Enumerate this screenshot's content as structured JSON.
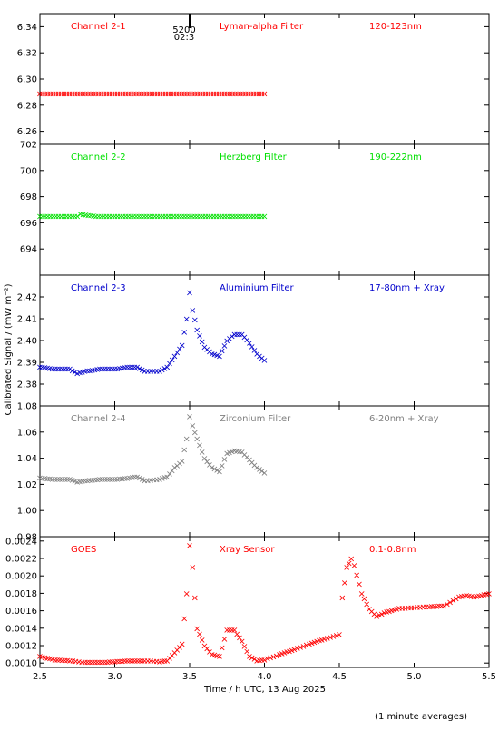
{
  "x_axis": {
    "title": "Time / h UTC, 13 Aug 2025",
    "ticks": [
      2.5,
      3.0,
      3.5,
      4.0,
      4.5,
      5.0,
      5.5
    ],
    "tick_labels": [
      "2.5",
      "3.0",
      "3.5",
      "4.0",
      "4.5",
      "5.0",
      "5.5"
    ],
    "range": [
      2.5,
      5.5
    ]
  },
  "y_axis_title": "Calibrated Signal / (mW m⁻²)",
  "footnote": "(1 minute averages)",
  "marker": {
    "x": 3.5,
    "label1": "5200",
    "label2": "02:3"
  },
  "chart_data": [
    {
      "type": "scatter",
      "channel": "Channel 2-1",
      "filter": "Lyman-alpha Filter",
      "band": "120-123nm",
      "color": "#ff0000",
      "ylim": [
        6.25,
        6.35
      ],
      "yticks": [
        6.26,
        6.28,
        6.3,
        6.32,
        6.34
      ],
      "ytick_labels": [
        "6.26",
        "6.28",
        "6.30",
        "6.32",
        "6.34"
      ],
      "series": [
        {
          "x": [
            2.5,
            2.625,
            2.75,
            2.875,
            3.0,
            3.125,
            3.25,
            3.375,
            3.5,
            3.625,
            3.75,
            3.875,
            4.0
          ],
          "y": [
            6.289,
            6.289,
            6.289,
            6.289,
            6.289,
            6.289,
            6.289,
            6.289,
            6.289,
            6.289,
            6.289,
            6.289,
            6.289
          ]
        }
      ]
    },
    {
      "type": "scatter",
      "channel": "Channel 2-2",
      "filter": "Herzberg Filter",
      "band": "190-222nm",
      "color": "#00e000",
      "ylim": [
        692,
        702
      ],
      "yticks": [
        694,
        696,
        698,
        700,
        702
      ],
      "ytick_labels": [
        "694",
        "696",
        "698",
        "700",
        "702"
      ],
      "series": [
        {
          "x": [
            2.5,
            2.625,
            2.75,
            2.77,
            2.875,
            3.0,
            3.125,
            3.25,
            3.375,
            3.5,
            3.625,
            3.75,
            3.875,
            4.0
          ],
          "y": [
            696.5,
            696.5,
            696.5,
            696.7,
            696.5,
            696.5,
            696.5,
            696.5,
            696.5,
            696.5,
            696.5,
            696.5,
            696.5,
            696.5
          ]
        }
      ]
    },
    {
      "type": "scatter",
      "channel": "Channel 2-3",
      "filter": "Aluminium Filter",
      "band": "17-80nm + Xray",
      "color": "#0000cc",
      "ylim": [
        2.37,
        2.43
      ],
      "yticks": [
        2.38,
        2.39,
        2.4,
        2.41,
        2.42
      ],
      "ytick_labels": [
        "2.38",
        "2.39",
        "2.40",
        "2.41",
        "2.42"
      ],
      "series": [
        {
          "x": [
            2.5,
            2.6,
            2.7,
            2.75,
            2.8,
            2.9,
            3.0,
            3.1,
            3.15,
            3.2,
            3.3,
            3.35,
            3.4,
            3.45,
            3.48,
            3.5,
            3.52,
            3.55,
            3.6,
            3.65,
            3.7,
            3.75,
            3.8,
            3.85,
            3.9,
            3.95,
            4.0
          ],
          "y": [
            2.388,
            2.387,
            2.387,
            2.385,
            2.386,
            2.387,
            2.387,
            2.388,
            2.388,
            2.386,
            2.386,
            2.388,
            2.393,
            2.398,
            2.41,
            2.422,
            2.414,
            2.405,
            2.397,
            2.394,
            2.393,
            2.4,
            2.403,
            2.403,
            2.399,
            2.394,
            2.391
          ]
        }
      ]
    },
    {
      "type": "scatter",
      "channel": "Channel 2-4",
      "filter": "Zirconium Filter",
      "band": "6-20nm + Xray",
      "color": "#808080",
      "ylim": [
        0.98,
        1.08
      ],
      "yticks": [
        0.98,
        1.0,
        1.02,
        1.04,
        1.06,
        1.08
      ],
      "ytick_labels": [
        "0.98",
        "1.00",
        "1.02",
        "1.04",
        "1.06",
        "1.08"
      ],
      "series": [
        {
          "x": [
            2.5,
            2.6,
            2.7,
            2.75,
            2.8,
            2.9,
            3.0,
            3.1,
            3.15,
            3.2,
            3.3,
            3.35,
            3.4,
            3.45,
            3.48,
            3.5,
            3.52,
            3.55,
            3.6,
            3.65,
            3.7,
            3.75,
            3.8,
            3.85,
            3.9,
            3.95,
            4.0
          ],
          "y": [
            1.025,
            1.024,
            1.024,
            1.022,
            1.023,
            1.024,
            1.024,
            1.025,
            1.026,
            1.023,
            1.024,
            1.026,
            1.033,
            1.038,
            1.055,
            1.072,
            1.065,
            1.055,
            1.04,
            1.033,
            1.03,
            1.044,
            1.046,
            1.045,
            1.039,
            1.033,
            1.029
          ]
        }
      ]
    },
    {
      "type": "scatter",
      "channel": "GOES",
      "filter": "Xray Sensor",
      "band": "0.1-0.8nm",
      "color": "#ff0000",
      "ylim": [
        0.00095,
        0.00245
      ],
      "yticks": [
        0.001,
        0.0012,
        0.0014,
        0.0016,
        0.0018,
        0.002,
        0.0022,
        0.0024
      ],
      "ytick_labels": [
        "0.0010",
        "0.0012",
        "0.0014",
        "0.0016",
        "0.0018",
        "0.0020",
        "0.0022",
        "0.0024"
      ],
      "series": [
        {
          "x": [
            2.5,
            2.6,
            2.7,
            2.8,
            2.9,
            3.0,
            3.1,
            3.2,
            3.3,
            3.35,
            3.4,
            3.45,
            3.48,
            3.5,
            3.52,
            3.55,
            3.6,
            3.65,
            3.7,
            3.75,
            3.8,
            3.85,
            3.9,
            3.95,
            4.0,
            4.1,
            4.2,
            4.3,
            4.4,
            4.5,
            4.52,
            4.55,
            4.58,
            4.6,
            4.65,
            4.7,
            4.75,
            4.8,
            4.9,
            5.0,
            5.1,
            5.2,
            5.3,
            5.35,
            5.4,
            5.5
          ],
          "y": [
            0.00108,
            0.00104,
            0.00103,
            0.00101,
            0.00101,
            0.00102,
            0.00103,
            0.00103,
            0.00102,
            0.00103,
            0.00112,
            0.00122,
            0.0018,
            0.00235,
            0.0021,
            0.0014,
            0.0012,
            0.0011,
            0.00108,
            0.00138,
            0.00138,
            0.00125,
            0.00108,
            0.00103,
            0.00104,
            0.0011,
            0.00116,
            0.00122,
            0.00128,
            0.00133,
            0.00175,
            0.0021,
            0.0022,
            0.00212,
            0.0018,
            0.00162,
            0.00154,
            0.00158,
            0.00163,
            0.00164,
            0.00165,
            0.00166,
            0.00176,
            0.00178,
            0.00176,
            0.0018
          ]
        }
      ]
    }
  ]
}
